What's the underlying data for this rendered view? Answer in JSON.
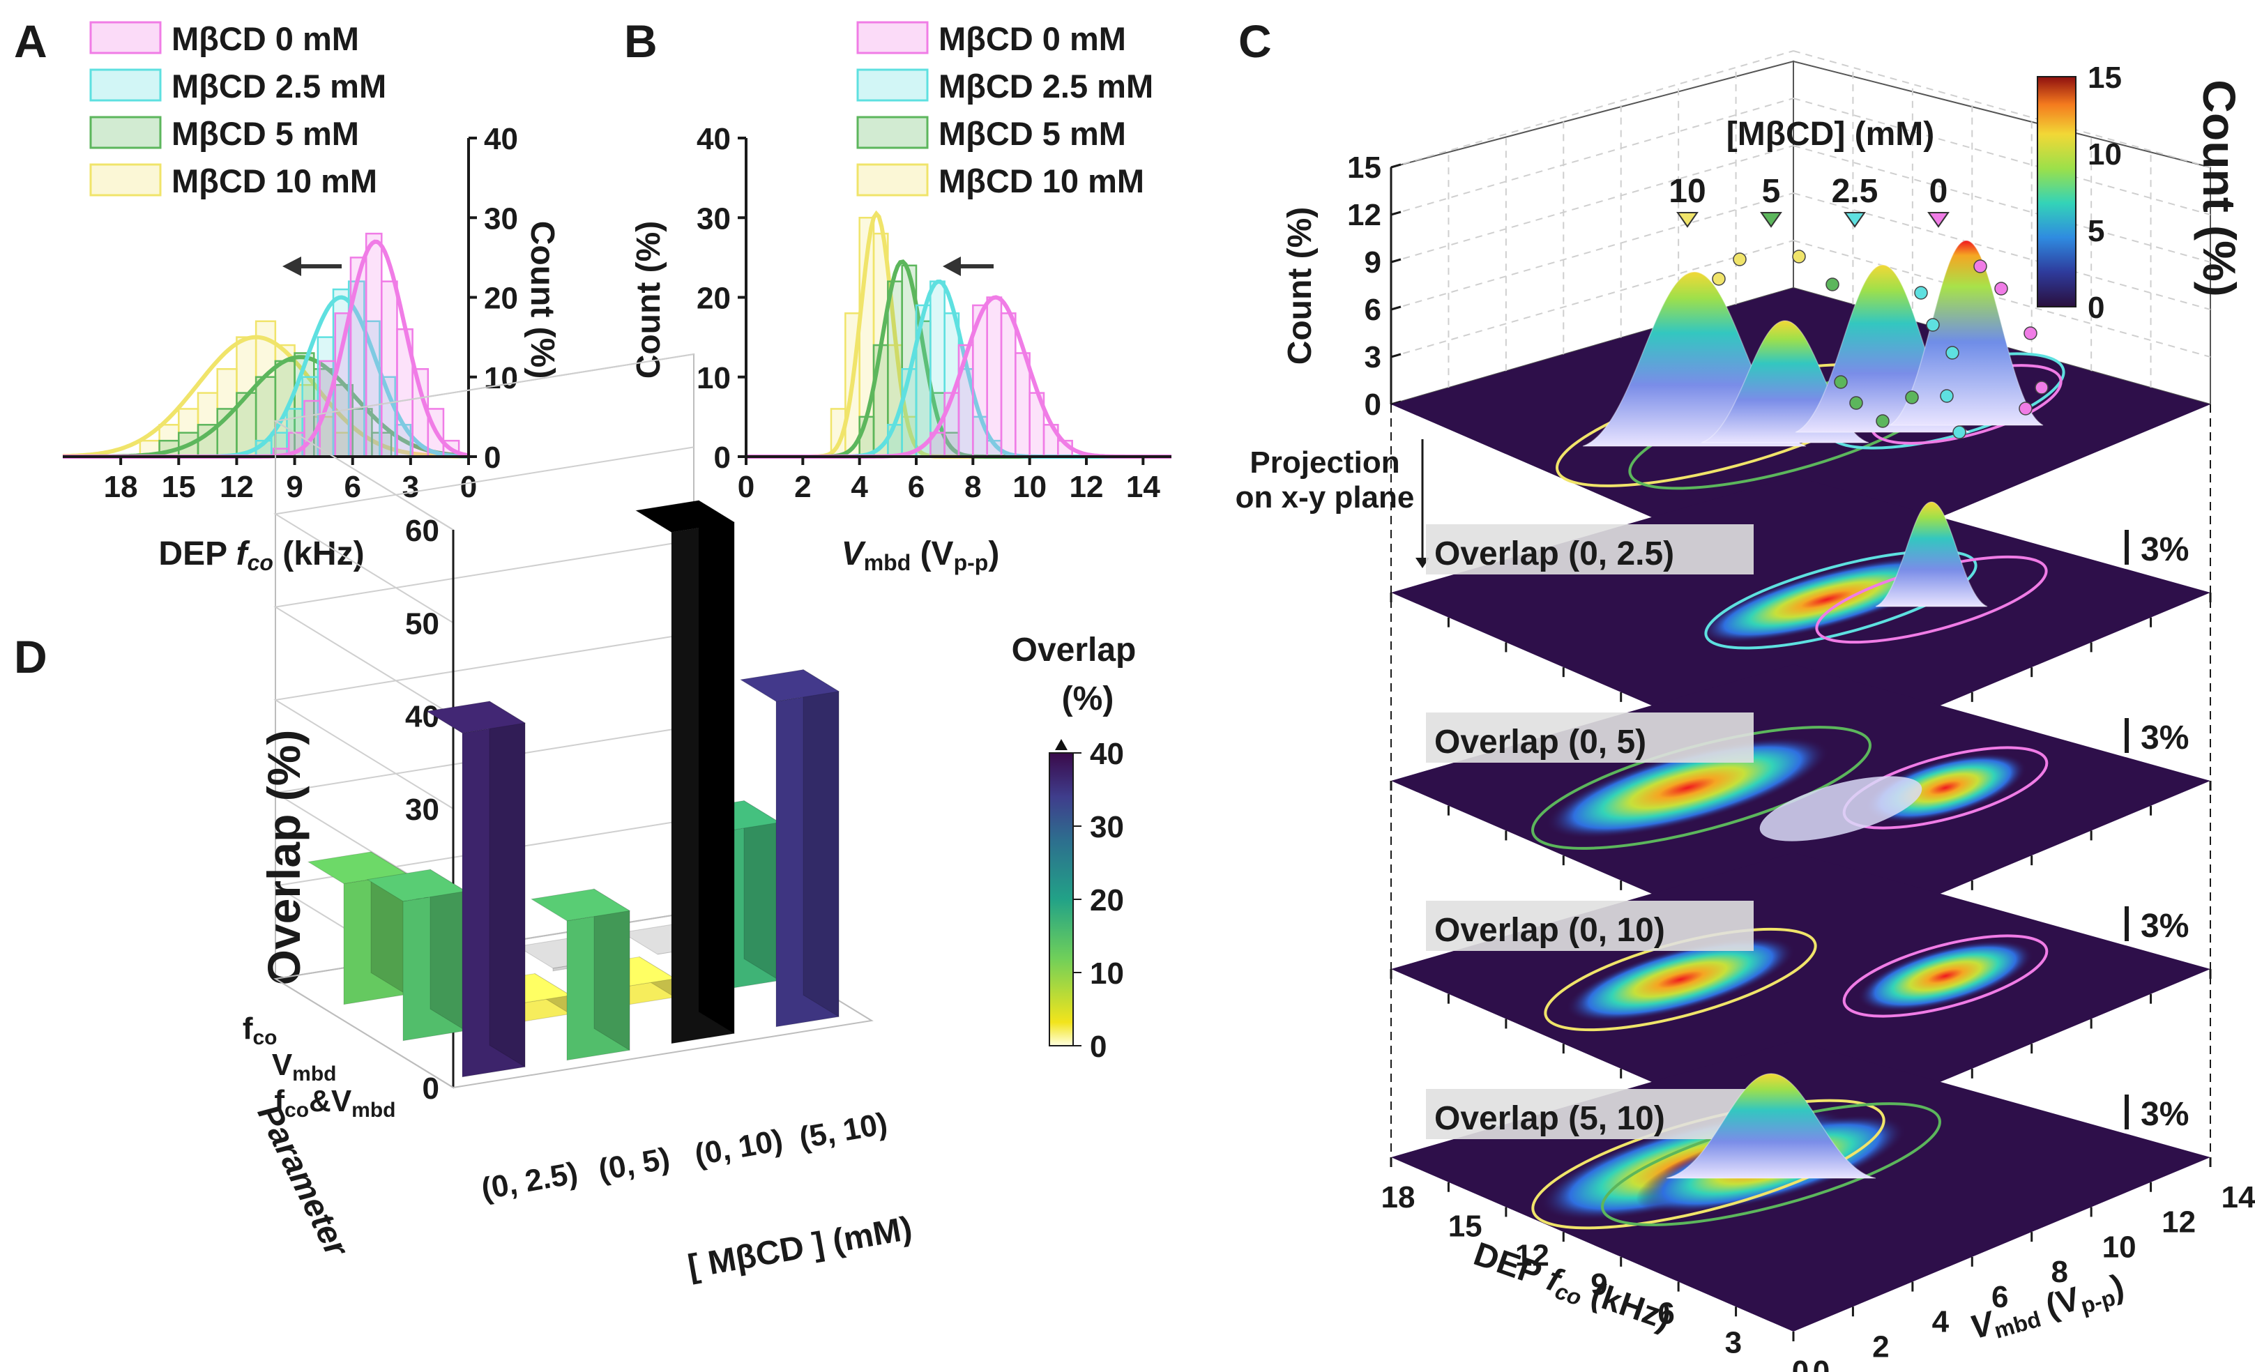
{
  "panels": {
    "a": {
      "label": "A"
    },
    "b": {
      "label": "B"
    },
    "c": {
      "label": "C"
    },
    "d": {
      "label": "D"
    }
  },
  "colors": {
    "c0": "#f07ce6",
    "c25": "#5ee0e0",
    "c5": "#5cb65c",
    "c10": "#f0e46a",
    "dark": "#2e0f4a"
  },
  "legend": [
    "MβCD 0 mM",
    "MβCD 2.5 mM",
    "MβCD 5 mM",
    "MβCD 10 mM"
  ],
  "chart_data": [
    {
      "id": "A",
      "type": "histogram-with-fit",
      "xlabel_pre": "DEP ",
      "xlabel_var": "f",
      "xlabel_sub": "co",
      "xlabel_post": " (kHz)",
      "ylabel": "Count (%)",
      "y_axis_side": "right",
      "x_reversed": true,
      "xlim": [
        0,
        21
      ],
      "ylim": [
        0,
        40
      ],
      "xticks": [
        18,
        15,
        12,
        9,
        6,
        3,
        0
      ],
      "yticks": [
        0,
        10,
        20,
        30,
        40
      ],
      "series": [
        {
          "name": "MβCD 0 mM",
          "bins_lo": 0.5,
          "bin_width": 0.8,
          "counts": [
            2,
            6,
            11,
            16,
            22,
            28,
            25,
            18,
            12,
            7,
            3,
            1
          ],
          "fit": {
            "mean": 4.8,
            "sd": 1.5,
            "peak": 27
          }
        },
        {
          "name": "MβCD 2.5 mM",
          "bins_lo": 3,
          "bin_width": 0.8,
          "counts": [
            4,
            10,
            17,
            22,
            21,
            15,
            10,
            6,
            3,
            2
          ],
          "fit": {
            "mean": 6.6,
            "sd": 1.8,
            "peak": 20
          }
        },
        {
          "name": "MβCD 5 mM",
          "bins_lo": 4,
          "bin_width": 1,
          "counts": [
            3,
            6,
            9,
            11,
            13,
            12,
            10,
            8,
            6,
            4,
            3,
            2
          ],
          "fit": {
            "mean": 8.7,
            "sd": 2.8,
            "peak": 12.5
          }
        },
        {
          "name": "MβCD 10 mM",
          "bins_lo": 6,
          "bin_width": 1,
          "counts": [
            3,
            5,
            9,
            14,
            17,
            15,
            11,
            8,
            6,
            4,
            2
          ],
          "fit": {
            "mean": 11,
            "sd": 3,
            "peak": 15
          }
        }
      ]
    },
    {
      "id": "B",
      "type": "histogram-with-fit",
      "xlabel_pre": "",
      "xlabel_var": "V",
      "xlabel_sub": "mbd",
      "xlabel_post": " (V",
      "xlabel_post_sub": "p-p",
      "xlabel_end": ")",
      "ylabel": "Count (%)",
      "y_axis_side": "left",
      "x_reversed": false,
      "xlim": [
        0,
        15
      ],
      "ylim": [
        0,
        40
      ],
      "xticks": [
        0,
        2,
        4,
        6,
        8,
        10,
        12,
        14
      ],
      "yticks": [
        0,
        10,
        20,
        30,
        40
      ],
      "series": [
        {
          "name": "MβCD 0 mM",
          "bins_lo": 6.5,
          "bin_width": 0.5,
          "counts": [
            3,
            8,
            14,
            19,
            20,
            18,
            13,
            8,
            4,
            2
          ],
          "fit": {
            "mean": 8.8,
            "sd": 1.1,
            "peak": 20
          }
        },
        {
          "name": "MβCD 2.5 mM",
          "bins_lo": 5,
          "bin_width": 0.5,
          "counts": [
            4,
            11,
            19,
            22,
            18,
            11,
            5,
            2
          ],
          "fit": {
            "mean": 6.8,
            "sd": 0.85,
            "peak": 22
          }
        },
        {
          "name": "MβCD 5 mM",
          "bins_lo": 4,
          "bin_width": 0.5,
          "counts": [
            5,
            14,
            22,
            24,
            17,
            8,
            3
          ],
          "fit": {
            "mean": 5.5,
            "sd": 0.7,
            "peak": 24.5
          }
        },
        {
          "name": "MβCD 10 mM",
          "bins_lo": 3,
          "bin_width": 0.5,
          "counts": [
            6,
            18,
            30,
            28,
            14,
            5
          ],
          "fit": {
            "mean": 4.6,
            "sd": 0.55,
            "peak": 30.5
          }
        }
      ]
    },
    {
      "id": "C",
      "type": "3d-surface-stack",
      "zlabel": "Count (%)",
      "zticks": [
        0,
        3,
        6,
        9,
        12,
        15
      ],
      "xlabel_pre": "DEP ",
      "xlabel_var": "f",
      "xlabel_sub": "co",
      "xlabel_post": " (kHz)",
      "xticks": [
        18,
        15,
        12,
        9,
        6,
        3,
        0
      ],
      "ylabel_var": "V",
      "ylabel_sub": "mbd",
      "ylabel_post": " (V",
      "ylabel_post_sub": "p-p",
      "ylabel_end": ")",
      "yticks": [
        0,
        2,
        4,
        6,
        8,
        10,
        12,
        14
      ],
      "conc_title": "[MβCD] (mM)",
      "conc_markers": [
        "10",
        "5",
        "2.5",
        "0"
      ],
      "colorbar": {
        "title": "Count (%)",
        "ticks": [
          0,
          5,
          10,
          15
        ],
        "min": 0,
        "max": 15
      },
      "projection_note": [
        "Projection",
        "on x-y plane"
      ],
      "layers": [
        {
          "label": "Overlap (0, 2.5)",
          "scale": "3%"
        },
        {
          "label": "Overlap (0, 5)",
          "scale": "3%"
        },
        {
          "label": "Overlap (0, 10)",
          "scale": "3%"
        },
        {
          "label": "Overlap (5, 10)",
          "scale": "3%"
        }
      ]
    },
    {
      "id": "D",
      "type": "3d-bar",
      "zlabel": "Overlap (%)",
      "zticks": [
        0,
        10,
        20,
        30,
        40,
        50,
        60
      ],
      "xlabel": "[ MβCD ] (mM)",
      "categories": [
        "(0, 2.5)",
        "(0, 5)",
        "(0, 10)",
        "(5, 10)"
      ],
      "parameter_label": "Parameter",
      "parameters": [
        {
          "var": "f",
          "sub": "co"
        },
        {
          "var": "V",
          "sub": "mbd"
        },
        {
          "var": "f",
          "sub": "co",
          "amp": "&V",
          "sub2": "mbd"
        }
      ],
      "values": [
        [
          37,
          15,
          55,
          35
        ],
        [
          15,
          2,
          2,
          17
        ],
        [
          13,
          3,
          0.3,
          0
        ]
      ],
      "colorbar": {
        "title": "Overlap",
        "unit": "(%)",
        "ticks": [
          0,
          10,
          20,
          30,
          40
        ],
        "min": 0,
        "max": 40
      }
    }
  ]
}
